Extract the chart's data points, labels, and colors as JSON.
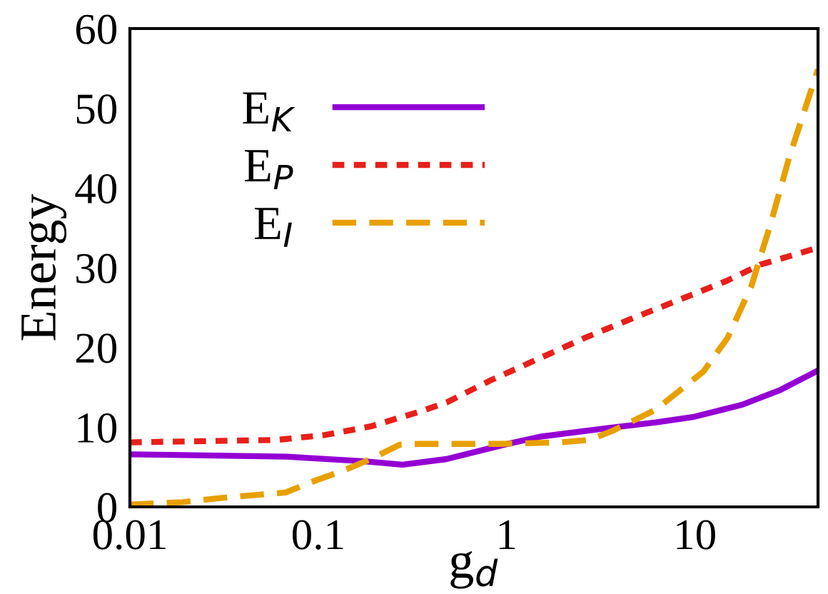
{
  "chart_data": {
    "type": "line",
    "xlabel": "g$_{d}$",
    "ylabel": "Energy",
    "log": "x",
    "xlim": [
      0.01,
      45
    ],
    "ylim": [
      0,
      60
    ],
    "xticks": [
      {
        "value": 0.01,
        "label": "0.01"
      },
      {
        "value": 0.1,
        "label": "0.1"
      },
      {
        "value": 1,
        "label": "1"
      },
      {
        "value": 10,
        "label": "10"
      }
    ],
    "yticks": [
      0,
      10,
      20,
      30,
      40,
      50,
      60
    ],
    "grid": false,
    "legend": "top left",
    "marker": "none",
    "series": [
      {
        "name": "E$_{K}$",
        "color": "#9400d3",
        "line_style": "solid",
        "x": [
          0.01,
          0.068,
          0.18,
          0.28,
          0.48,
          0.97,
          1.5,
          3.5,
          6.2,
          9.9,
          17.7,
          28,
          45
        ],
        "values": [
          6.6,
          6.3,
          5.7,
          5.3,
          6.0,
          7.8,
          8.8,
          9.9,
          10.6,
          11.3,
          12.8,
          14.6,
          17.1
        ]
      },
      {
        "name": "E$_{P}$",
        "color": "#e8201a",
        "line_style": "dotted",
        "x": [
          0.01,
          0.06,
          0.107,
          0.19,
          0.34,
          0.48,
          0.81,
          1.45,
          2.6,
          4.6,
          8.3,
          14.9,
          22.3,
          45
        ],
        "values": [
          8.1,
          8.4,
          9.0,
          10.1,
          11.9,
          13.1,
          15.8,
          18.5,
          21.2,
          23.6,
          26.0,
          28.4,
          30.4,
          32.5
        ]
      },
      {
        "name": "E$_{I}$",
        "color": "#e8a000",
        "line_style": "dashed",
        "x": [
          0.01,
          0.019,
          0.033,
          0.067,
          0.089,
          0.134,
          0.19,
          0.27,
          0.34,
          0.91,
          1.95,
          2.76,
          3.7,
          6.2,
          11.1,
          14.9,
          20,
          25.2,
          31.7,
          45
        ],
        "values": [
          0.3,
          0.6,
          1.2,
          1.8,
          3.0,
          4.5,
          6.0,
          7.8,
          7.9,
          7.9,
          8.1,
          8.4,
          9.6,
          12.2,
          17.0,
          21.2,
          27.8,
          35.5,
          43.9,
          54.9
        ]
      }
    ]
  }
}
